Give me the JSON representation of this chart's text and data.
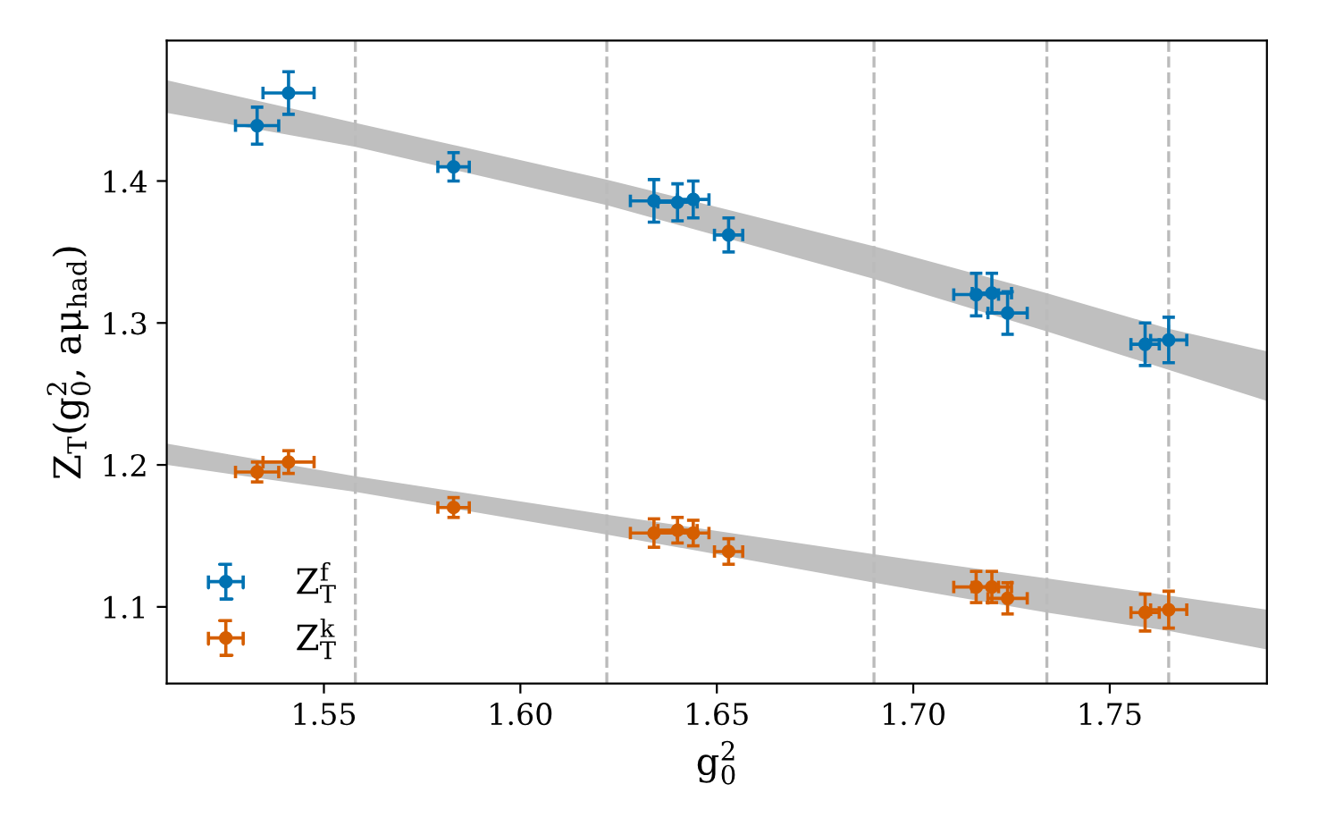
{
  "chart_data": {
    "type": "scatter",
    "xlabel": "g$^{2}$$_{0}$",
    "ylabel": "Z$_{T}$(g$^{2}$$_{0}$, aμ$_{had}$)",
    "xlim": [
      1.51,
      1.79
    ],
    "ylim": [
      1.046,
      1.499
    ],
    "xticks": [
      1.55,
      {
        "value": 1.6,
        "label": "1.60"
      },
      1.65,
      {
        "value": 1.7,
        "label": "1.70"
      },
      1.75
    ],
    "yticks": [
      1.1,
      1.2,
      1.3,
      1.4
    ],
    "grid": false,
    "legend": "lower left",
    "ref_lines": [
      {
        "axis": "x",
        "value": 1.558,
        "color": "#bbbbbb",
        "line_style": "dashed"
      },
      {
        "axis": "x",
        "value": 1.622,
        "color": "#bbbbbb",
        "line_style": "dashed"
      },
      {
        "axis": "x",
        "value": 1.69,
        "color": "#bbbbbb",
        "line_style": "dashed"
      },
      {
        "axis": "x",
        "value": 1.734,
        "color": "#bbbbbb",
        "line_style": "dashed"
      },
      {
        "axis": "x",
        "value": 1.765,
        "color": "#bbbbbb",
        "line_style": "dashed"
      }
    ],
    "series": [
      {
        "type": "line",
        "color": "#bfbfbf",
        "x": [
          1.51,
          1.558,
          1.622,
          1.69,
          1.734,
          1.765,
          1.79
        ],
        "values": [
          null,
          null,
          null,
          null,
          null,
          null,
          null
        ],
        "lower": [
          1.448,
          1.424,
          1.383,
          1.331,
          1.294,
          1.267,
          1.245
        ],
        "upper": [
          1.471,
          1.441,
          1.401,
          1.354,
          1.321,
          1.296,
          1.28
        ]
      },
      {
        "type": "line",
        "color": "#c0c0c0",
        "x": [
          1.51,
          1.558,
          1.622,
          1.69,
          1.734,
          1.765,
          1.79
        ],
        "values": [
          null,
          null,
          null,
          null,
          null,
          null,
          null
        ],
        "lower": [
          1.2,
          1.181,
          1.151,
          1.117,
          1.096,
          1.083,
          1.07
        ],
        "upper": [
          1.215,
          1.192,
          1.165,
          1.137,
          1.12,
          1.108,
          1.098
        ]
      },
      {
        "name": "Z$^{f}$$_{T}$",
        "marker": "circle",
        "color": "#0072b2",
        "x": [
          1.533,
          1.541,
          1.583,
          1.634,
          1.64,
          1.644,
          1.653,
          1.716,
          1.72,
          1.724,
          1.759,
          1.765
        ],
        "values": [
          1.439,
          1.462,
          1.41,
          1.386,
          1.385,
          1.387,
          1.362,
          1.32,
          1.321,
          1.307,
          1.285,
          1.288
        ],
        "errors": [
          0.013,
          0.015,
          0.01,
          0.015,
          0.013,
          0.013,
          0.012,
          0.015,
          0.014,
          0.015,
          0.015,
          0.016
        ],
        "xerrors": [
          0.0055,
          0.0065,
          0.004,
          0.006,
          0.005,
          0.004,
          0.0036,
          0.0057,
          0.005,
          0.005,
          0.0036,
          0.0046
        ]
      },
      {
        "name": "Z$^{k}$$_{T}$",
        "marker": "circle",
        "color": "#d55e00",
        "x": [
          1.533,
          1.541,
          1.583,
          1.634,
          1.64,
          1.644,
          1.653,
          1.716,
          1.72,
          1.724,
          1.759,
          1.765
        ],
        "values": [
          1.195,
          1.202,
          1.17,
          1.152,
          1.154,
          1.152,
          1.139,
          1.114,
          1.114,
          1.106,
          1.096,
          1.098
        ],
        "errors": [
          0.007,
          0.008,
          0.007,
          0.01,
          0.009,
          0.009,
          0.009,
          0.011,
          0.011,
          0.011,
          0.013,
          0.013
        ],
        "xerrors": [
          0.0055,
          0.0065,
          0.004,
          0.006,
          0.005,
          0.004,
          0.0036,
          0.0057,
          0.005,
          0.005,
          0.0036,
          0.0046
        ]
      }
    ]
  }
}
